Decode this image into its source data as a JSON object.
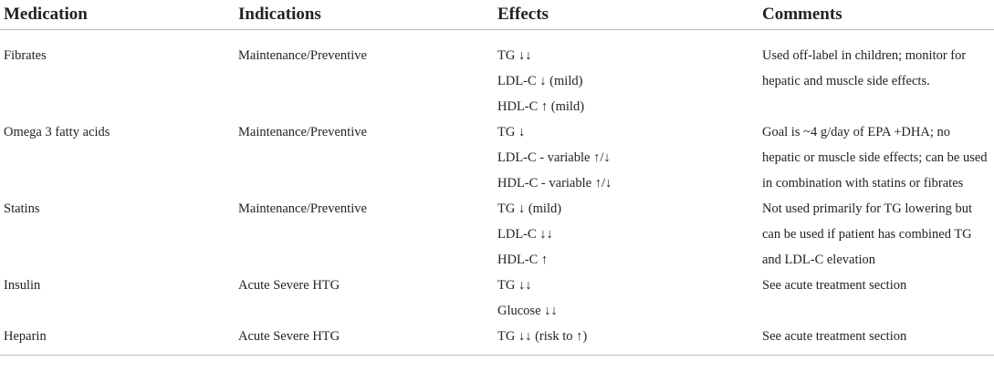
{
  "headers": {
    "medication": "Medication",
    "indications": "Indications",
    "effects": "Effects",
    "comments": "Comments"
  },
  "rows": [
    {
      "medication": "Fibrates",
      "indications": "Maintenance/Preventive",
      "effects": [
        "TG ↓↓",
        "LDL-C ↓ (mild)",
        "HDL-C ↑ (mild)"
      ],
      "comments": "Used off-label in children; monitor for hepatic and muscle side effects."
    },
    {
      "medication": "Omega 3 fatty acids",
      "indications": "Maintenance/Preventive",
      "effects": [
        "TG ↓",
        "LDL-C - variable ↑/↓",
        "HDL-C - variable ↑/↓"
      ],
      "comments": "Goal is ~4 g/day of EPA +DHA; no hepatic or muscle side effects; can be used in combination with statins or fibrates"
    },
    {
      "medication": "Statins",
      "indications": "Maintenance/Preventive",
      "effects": [
        "TG ↓ (mild)",
        "LDL-C ↓↓",
        "HDL-C ↑"
      ],
      "comments": "Not used primarily for TG lowering but can be used if patient has combined TG and LDL-C elevation"
    },
    {
      "medication": "Insulin",
      "indications": "Acute Severe HTG",
      "effects": [
        "TG ↓↓",
        "Glucose ↓↓"
      ],
      "comments": "See acute treatment section"
    },
    {
      "medication": "Heparin",
      "indications": "Acute Severe HTG",
      "effects": [
        "TG ↓↓ (risk to ↑)"
      ],
      "comments": "See acute treatment section"
    }
  ]
}
